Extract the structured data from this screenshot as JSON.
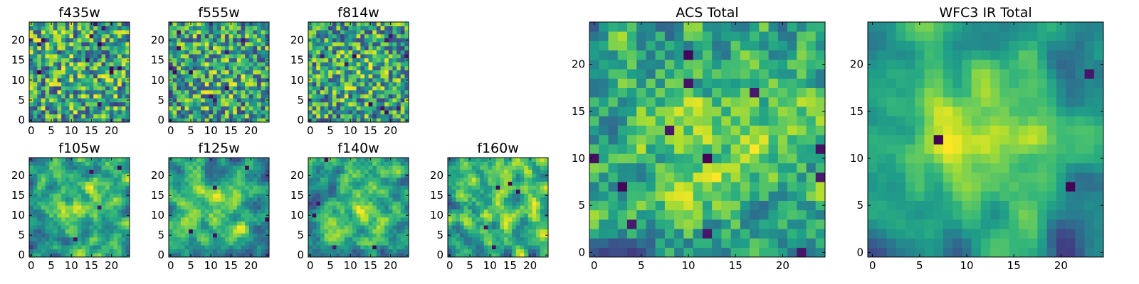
{
  "chart_data": [
    {
      "type": "heatmap",
      "title": "f435w",
      "xticks": [
        0,
        5,
        10,
        15,
        20
      ],
      "yticks": [
        0,
        5,
        10,
        15,
        20
      ],
      "xlim": [
        0,
        25
      ],
      "ylim": [
        0,
        25
      ],
      "grid": false,
      "colormap": "viridis",
      "nx": 25,
      "ny": 25,
      "seed": 11,
      "smooth": 0,
      "dark_spots": 12,
      "center_boost": 0.05
    },
    {
      "type": "heatmap",
      "title": "f555w",
      "xticks": [
        0,
        5,
        10,
        15,
        20
      ],
      "yticks": [
        0,
        5,
        10,
        15,
        20
      ],
      "xlim": [
        0,
        25
      ],
      "ylim": [
        0,
        25
      ],
      "grid": false,
      "colormap": "viridis",
      "nx": 25,
      "ny": 25,
      "seed": 23,
      "smooth": 0,
      "dark_spots": 10,
      "center_boost": 0.12
    },
    {
      "type": "heatmap",
      "title": "f814w",
      "xticks": [
        0,
        5,
        10,
        15,
        20
      ],
      "yticks": [
        0,
        5,
        10,
        15,
        20
      ],
      "xlim": [
        0,
        25
      ],
      "ylim": [
        0,
        25
      ],
      "grid": false,
      "colormap": "viridis",
      "nx": 25,
      "ny": 25,
      "seed": 37,
      "smooth": 0,
      "dark_spots": 10,
      "center_boost": 0.12
    },
    {
      "type": "heatmap",
      "title": "f105w",
      "xticks": [
        0,
        5,
        10,
        15,
        20
      ],
      "yticks": [
        0,
        5,
        10,
        15,
        20
      ],
      "xlim": [
        0,
        25
      ],
      "ylim": [
        0,
        25
      ],
      "grid": false,
      "colormap": "viridis",
      "nx": 25,
      "ny": 25,
      "seed": 41,
      "smooth": 2,
      "dark_spots": 4,
      "center_boost": 0.2
    },
    {
      "type": "heatmap",
      "title": "f125w",
      "xticks": [
        0,
        5,
        10,
        15,
        20
      ],
      "yticks": [
        0,
        5,
        10,
        15,
        20
      ],
      "xlim": [
        0,
        25
      ],
      "ylim": [
        0,
        25
      ],
      "grid": false,
      "colormap": "viridis",
      "nx": 25,
      "ny": 25,
      "seed": 53,
      "smooth": 2,
      "dark_spots": 5,
      "center_boost": 0.15
    },
    {
      "type": "heatmap",
      "title": "f140w",
      "xticks": [
        0,
        5,
        10,
        15,
        20
      ],
      "yticks": [
        0,
        5,
        10,
        15,
        20
      ],
      "xlim": [
        0,
        25
      ],
      "ylim": [
        0,
        25
      ],
      "grid": false,
      "colormap": "viridis",
      "nx": 25,
      "ny": 25,
      "seed": 67,
      "smooth": 2,
      "dark_spots": 5,
      "center_boost": 0.15
    },
    {
      "type": "heatmap",
      "title": "f160w",
      "xticks": [
        0,
        5,
        10,
        15,
        20
      ],
      "yticks": [
        0,
        5,
        10,
        15,
        20
      ],
      "xlim": [
        0,
        25
      ],
      "ylim": [
        0,
        25
      ],
      "grid": false,
      "colormap": "viridis",
      "nx": 25,
      "ny": 25,
      "seed": 79,
      "smooth": 2,
      "dark_spots": 5,
      "center_boost": 0.1
    },
    {
      "type": "heatmap",
      "title": "ACS Total",
      "xticks": [
        0,
        5,
        10,
        15,
        20
      ],
      "yticks": [
        0,
        5,
        10,
        15,
        20
      ],
      "xlim": [
        0,
        25
      ],
      "ylim": [
        0,
        25
      ],
      "grid": false,
      "colormap": "viridis",
      "nx": 25,
      "ny": 25,
      "seed": 97,
      "smooth": 1,
      "dark_spots": 12,
      "center_boost": 0.2
    },
    {
      "type": "heatmap",
      "title": "WFC3 IR Total",
      "xticks": [
        0,
        5,
        10,
        15,
        20
      ],
      "yticks": [
        0,
        5,
        10,
        15,
        20
      ],
      "xlim": [
        0,
        25
      ],
      "ylim": [
        0,
        25
      ],
      "grid": false,
      "colormap": "viridis",
      "nx": 25,
      "ny": 25,
      "seed": 131,
      "smooth": 3,
      "dark_spots": 3,
      "center_boost": 0.35
    }
  ]
}
